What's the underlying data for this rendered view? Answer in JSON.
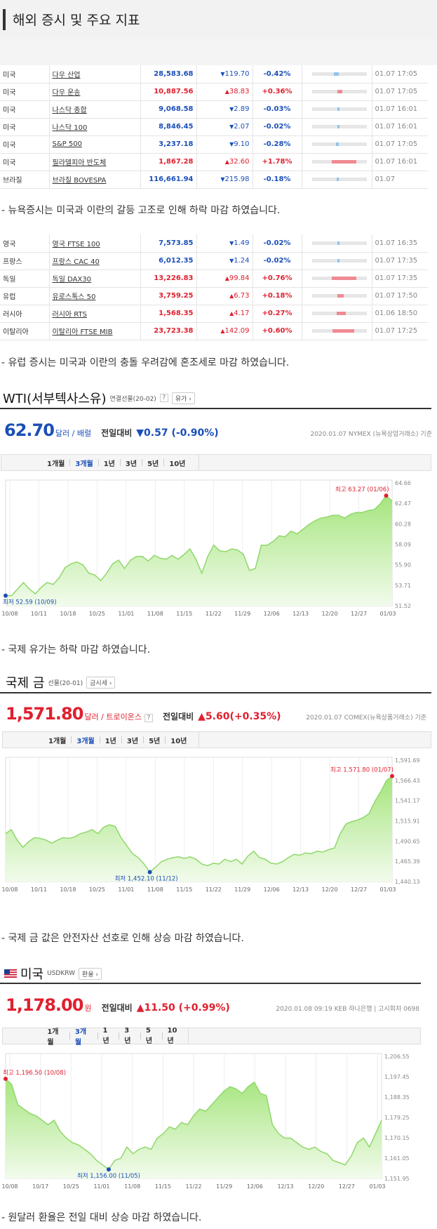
{
  "header": {
    "title": "해외 증시 및 주요 지표"
  },
  "us_indices": [
    {
      "country": "미국",
      "name": "다우 산업",
      "price": "28,583.68",
      "dir": "down",
      "change": "119.70",
      "pct": "-0.42%",
      "bar": 0.1,
      "time": "01.07 17:05"
    },
    {
      "country": "미국",
      "name": "다우 운송",
      "price": "10,887.56",
      "dir": "up",
      "change": "38.83",
      "pct": "+0.36%",
      "bar": 0.09,
      "time": "01.07 17:05"
    },
    {
      "country": "미국",
      "name": "나스닥 종합",
      "price": "9,068.58",
      "dir": "down",
      "change": "2.89",
      "pct": "-0.03%",
      "bar": 0.01,
      "time": "01.07 16:01"
    },
    {
      "country": "미국",
      "name": "나스닥 100",
      "price": "8,846.45",
      "dir": "down",
      "change": "2.07",
      "pct": "-0.02%",
      "bar": 0.01,
      "time": "01.07 16:01"
    },
    {
      "country": "미국",
      "name": "S&P 500",
      "price": "3,237.18",
      "dir": "down",
      "change": "9.10",
      "pct": "-0.28%",
      "bar": 0.06,
      "time": "01.07 17:05"
    },
    {
      "country": "미국",
      "name": "필라델피아 반도체",
      "price": "1,867.28",
      "dir": "up",
      "change": "32.60",
      "pct": "+1.78%",
      "bar": 0.45,
      "time": "01.07 16:01"
    },
    {
      "country": "브라질",
      "name": "브라질 BOVESPA",
      "price": "116,661.94",
      "dir": "down",
      "change": "215.98",
      "pct": "-0.18%",
      "bar": 0.04,
      "time": "01.07"
    }
  ],
  "note_us": "- 뉴욕증시는 미국과 이란의 갈등 고조로 인해 하락 마감 하였습니다.",
  "eu_indices": [
    {
      "country": "영국",
      "name": "영국 FTSE 100",
      "price": "7,573.85",
      "dir": "down",
      "change": "1.49",
      "pct": "-0.02%",
      "bar": 0.01,
      "time": "01.07 16:35"
    },
    {
      "country": "프랑스",
      "name": "프랑스 CAC 40",
      "price": "6,012.35",
      "dir": "down",
      "change": "1.24",
      "pct": "-0.02%",
      "bar": 0.01,
      "time": "01.07 17:35"
    },
    {
      "country": "독일",
      "name": "독일 DAX30",
      "price": "13,226.83",
      "dir": "up",
      "change": "99.84",
      "pct": "+0.76%",
      "bar": 0.45,
      "time": "01.07 17:35"
    },
    {
      "country": "유럽",
      "name": "유로스톡스 50",
      "price": "3,759.25",
      "dir": "up",
      "change": "6.73",
      "pct": "+0.18%",
      "bar": 0.12,
      "time": "01.07 17:50"
    },
    {
      "country": "러시아",
      "name": "러시아 RTS",
      "price": "1,568.35",
      "dir": "up",
      "change": "4.17",
      "pct": "+0.27%",
      "bar": 0.17,
      "time": "01.06 18:50"
    },
    {
      "country": "이탈리아",
      "name": "이탈리아 FTSE MIB",
      "price": "23,723.38",
      "dir": "up",
      "change": "142.09",
      "pct": "+0.60%",
      "bar": 0.4,
      "time": "01.07 17:25"
    }
  ],
  "note_eu": "- 유럽 증시는 미국과 이란의 충돌 우려감에 혼조세로 마감 하였습니다.",
  "wti": {
    "title": "WTI(서부텍사스유)",
    "sub": "연결선물(20-02)",
    "help": "?",
    "btn": "유가 ›",
    "price": "62.70",
    "unit": "달러 / 배럴",
    "cmp_label": "전일대비",
    "cmp_value": "▼0.57 (-0.90%)",
    "source": "2020.01.07 NYMEX (뉴욕상업거래소) 기준",
    "tabs": [
      "1개월",
      "3개월",
      "1년",
      "3년",
      "5년",
      "10년"
    ],
    "active_tab": "3개월",
    "high_label": "최고 63.27 (01/06)",
    "low_label": "최저 52.59 (10/09)"
  },
  "note_wti": "- 국제 유가는 하락 마감 하였습니다.",
  "gold": {
    "title": "국제 금",
    "sub": "선물(20-01)",
    "btn": "금시세 ›",
    "price": "1,571.80",
    "unit": "달러 / 트로이온스",
    "help": "?",
    "cmp_label": "전일대비",
    "cmp_value": "▲5.60(+0.35%)",
    "source": "2020.01.07 COMEX(뉴욕상품거래소) 기준",
    "tabs": [
      "1개월",
      "3개월",
      "1년",
      "3년",
      "5년",
      "10년"
    ],
    "active_tab": "3개월",
    "high_label": "최고 1,571.80 (01/07)",
    "low_label": "최저 1,452.10 (11/12)"
  },
  "note_gold": "- 국제 금 값은 안전자산 선호로 인해 상승 마감 하였습니다.",
  "usd": {
    "flag": "us-flag",
    "title": "미국",
    "sub": "USDKRW",
    "btn": "환율 ›",
    "price": "1,178.00",
    "unit": "원",
    "cmp_label": "전일대비",
    "cmp_value": "▲11.50 (+0.99%)",
    "source": "2020.01.08 09:19  KEB 하나은행 | 고시회차 0698",
    "tabs": [
      "1개월",
      "3개월",
      "1년",
      "3년",
      "5년",
      "10년"
    ],
    "active_tab": "3개월",
    "high_label": "최고 1,196.50 (10/08)",
    "low_label": "최저 1,156.00 (11/05)"
  },
  "note_usd": "- 원달러 환율은 전일 대비 상승 마감 하였습니다.",
  "colors": {
    "up": "#e0202e",
    "down": "#1a4fb8",
    "area_top": "#a6e57e",
    "area_bottom": "#f2fbec",
    "line": "#8fd86a"
  },
  "chart_data": [
    {
      "type": "area",
      "title": "WTI(서부텍사스유)",
      "x_ticks": [
        "10/08",
        "10/11",
        "10/18",
        "10/25",
        "11/01",
        "11/08",
        "11/15",
        "11/22",
        "11/29",
        "12/06",
        "12/13",
        "12/20",
        "12/27",
        "01/03"
      ],
      "y_ticks": [
        "64.66",
        "62.47",
        "60.28",
        "58.09",
        "55.90",
        "53.71",
        "51.52"
      ],
      "ylim": [
        51.52,
        64.66
      ],
      "values": [
        52.6,
        52.6,
        53.3,
        54.0,
        53.3,
        52.8,
        53.5,
        54.0,
        53.8,
        54.5,
        55.6,
        56.0,
        56.2,
        55.9,
        55.0,
        54.8,
        54.2,
        55.0,
        56.0,
        56.4,
        55.5,
        56.4,
        56.8,
        56.8,
        56.3,
        56.9,
        56.6,
        56.5,
        56.9,
        56.5,
        57.0,
        57.6,
        56.5,
        55.0,
        56.8,
        58.0,
        57.4,
        57.3,
        57.6,
        57.5,
        57.0,
        55.3,
        55.5,
        58.0,
        58.0,
        58.4,
        59.0,
        58.9,
        59.5,
        59.2,
        59.7,
        60.2,
        60.6,
        60.9,
        61.0,
        61.2,
        61.2,
        60.9,
        61.3,
        61.5,
        61.5,
        61.7,
        61.8,
        62.4,
        63.3,
        62.7
      ]
    },
    {
      "type": "area",
      "title": "국제 금",
      "x_ticks": [
        "10/08",
        "10/11",
        "10/18",
        "10/25",
        "11/01",
        "11/08",
        "11/15",
        "11/22",
        "11/29",
        "12/06",
        "12/13",
        "12/20",
        "12/27",
        "01/03"
      ],
      "y_ticks": [
        "1,591.69",
        "1,566.43",
        "1,541.17",
        "1,515.91",
        "1,490.65",
        "1,465.39",
        "1,440.13"
      ],
      "ylim": [
        1440.13,
        1591.69
      ],
      "values": [
        1500,
        1505,
        1492,
        1483,
        1490,
        1495,
        1494,
        1492,
        1488,
        1492,
        1495,
        1494,
        1496,
        1500,
        1502,
        1505,
        1500,
        1508,
        1511,
        1509,
        1495,
        1485,
        1475,
        1470,
        1462,
        1452,
        1458,
        1465,
        1468,
        1470,
        1471,
        1469,
        1471,
        1468,
        1462,
        1460,
        1463,
        1462,
        1468,
        1465,
        1468,
        1462,
        1472,
        1478,
        1470,
        1468,
        1463,
        1462,
        1465,
        1470,
        1474,
        1473,
        1476,
        1475,
        1478,
        1477,
        1480,
        1482,
        1500,
        1512,
        1515,
        1517,
        1520,
        1525,
        1540,
        1552,
        1566,
        1571.8
      ]
    },
    {
      "type": "area",
      "title": "미국 USDKRW",
      "x_ticks": [
        "10/08",
        "10/17",
        "10/25",
        "11/01",
        "11/08",
        "11/15",
        "11/22",
        "11/29",
        "12/06",
        "12/13",
        "12/20",
        "12/27",
        "01/03"
      ],
      "y_ticks": [
        "1,206.55",
        "1,197.45",
        "1,188.35",
        "1,179.25",
        "1,170.15",
        "1,161.05",
        "1,151.95"
      ],
      "ylim": [
        1151.95,
        1206.55
      ],
      "values": [
        1196.5,
        1194,
        1185,
        1183,
        1181,
        1180,
        1178,
        1176,
        1178,
        1173,
        1170,
        1168,
        1167,
        1165,
        1163,
        1160,
        1158,
        1156,
        1160,
        1161,
        1166,
        1163,
        1165,
        1166,
        1165,
        1170,
        1172,
        1175,
        1174,
        1177,
        1176,
        1180,
        1183,
        1182,
        1185,
        1188,
        1191,
        1193,
        1192,
        1190,
        1193,
        1195,
        1190,
        1189,
        1176,
        1172,
        1170,
        1170,
        1168,
        1166,
        1165,
        1166,
        1164,
        1163,
        1160,
        1159,
        1158,
        1162,
        1168,
        1170,
        1166,
        1172,
        1178
      ]
    }
  ]
}
